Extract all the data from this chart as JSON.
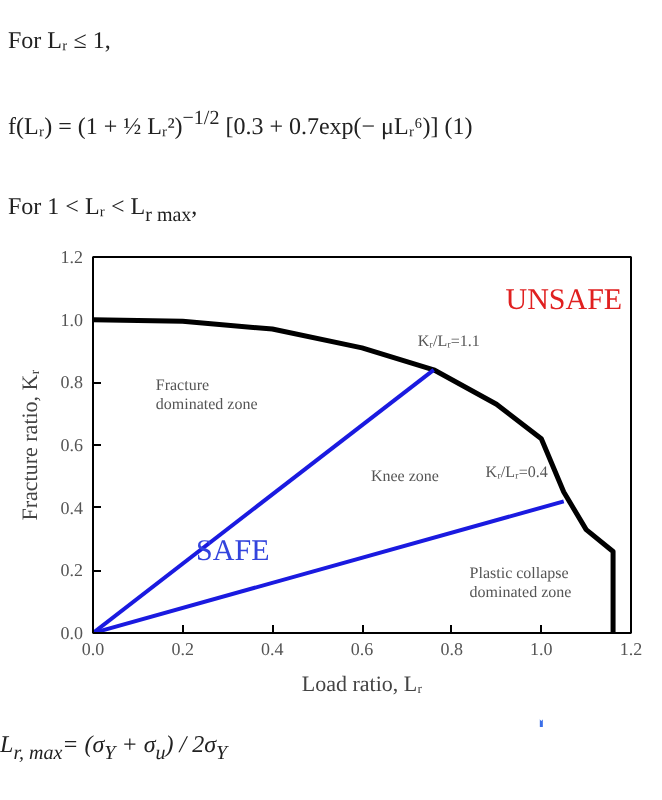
{
  "chart_data": {
    "type": "line",
    "xlabel": "Load ratio, Lᵣ",
    "ylabel": "Fracture ratio, Kᵣ",
    "xlim": [
      0,
      1.2
    ],
    "ylim": [
      0,
      1.2
    ],
    "xticks": [
      {
        "value": 0,
        "label": "0.0"
      },
      {
        "value": 0.2,
        "label": "0.2"
      },
      {
        "value": 0.4,
        "label": "0.4"
      },
      {
        "value": 0.6,
        "label": "0.6"
      },
      {
        "value": 0.8,
        "label": "0.8"
      },
      {
        "value": 1.0,
        "label": "1.0"
      },
      {
        "value": 1.2,
        "label": "1.2"
      }
    ],
    "yticks": [
      {
        "value": 0,
        "label": "0.0"
      },
      {
        "value": 0.2,
        "label": "0.2"
      },
      {
        "value": 0.4,
        "label": "0.4"
      },
      {
        "value": 0.6,
        "label": "0.6"
      },
      {
        "value": 0.8,
        "label": "0.8"
      },
      {
        "value": 1.0,
        "label": "1.0"
      },
      {
        "value": 1.2,
        "label": "1.2"
      }
    ],
    "grid": false,
    "marker": "none",
    "line_style": "solid",
    "series": [
      {
        "color": "#000000",
        "x": [
          0,
          0.2,
          0.4,
          0.6,
          0.76,
          0.9,
          1.0,
          1.05,
          1.1,
          1.16,
          1.16
        ],
        "values": [
          1.0,
          0.995,
          0.97,
          0.91,
          0.84,
          0.73,
          0.62,
          0.45,
          0.33,
          0.26,
          0.0
        ]
      },
      {
        "color": "#1a1ae0",
        "x": [
          0,
          0.76
        ],
        "values": [
          0,
          0.84
        ]
      },
      {
        "color": "#1a1ae0",
        "x": [
          0,
          1.05
        ],
        "values": [
          0,
          0.42
        ]
      }
    ],
    "annotations": [
      "For Lᵣ ≤ 1,",
      "f(Lᵣ) = (1 + ½ Lᵣ²)$^{−1/2}$ [0.3 + 0.7exp(− μLᵣ⁶)] (1)",
      "For 1 < Lᵣ < L$_{r max}$,",
      "UNSAFE",
      "SAFE",
      "Fracture\ndominated zone",
      "Knee zone",
      "Plastic collapse\ndominated zone",
      {
        "text": "Kᵣ/Lᵣ=1.1",
        "x": 0.76,
        "y": 0.84
      },
      {
        "text": "Kᵣ/Lᵣ=0.4",
        "x": 1.05,
        "y": 0.42
      },
      "L$_{r, max}$= (σ$_{Y}$ + σ$_{u}$) / 2σ$_{Y}$"
    ]
  }
}
